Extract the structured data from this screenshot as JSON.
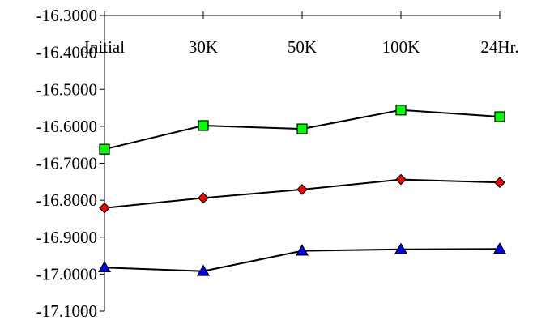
{
  "chart_data": {
    "type": "line",
    "title": "",
    "xlabel": "",
    "ylabel": "",
    "categories": [
      "Initial",
      "30K",
      "50K",
      "100K",
      "24Hr."
    ],
    "ylim": [
      -17.1,
      -16.3
    ],
    "y_ticks": [
      -16.3,
      -16.4,
      -16.5,
      -16.6,
      -16.7,
      -16.8,
      -16.9,
      -17.0,
      -17.1
    ],
    "y_tick_labels": [
      "-16.3000",
      "-16.4000",
      "-16.5000",
      "-16.6000",
      "-16.7000",
      "-16.8000",
      "-16.9000",
      "-17.0000",
      "-17.1000"
    ],
    "x_axis_position": "top",
    "grid": false,
    "legend": "none",
    "series": [
      {
        "marker": "square",
        "color": "#00ff00",
        "values": [
          -16.662,
          -16.598,
          -16.607,
          -16.556,
          -16.574
        ]
      },
      {
        "marker": "diamond",
        "color": "#ff0000",
        "values": [
          -16.821,
          -16.794,
          -16.771,
          -16.744,
          -16.752
        ]
      },
      {
        "marker": "triangle",
        "color": "#0000ff",
        "values": [
          -16.982,
          -16.992,
          -16.937,
          -16.933,
          -16.932
        ]
      }
    ]
  }
}
